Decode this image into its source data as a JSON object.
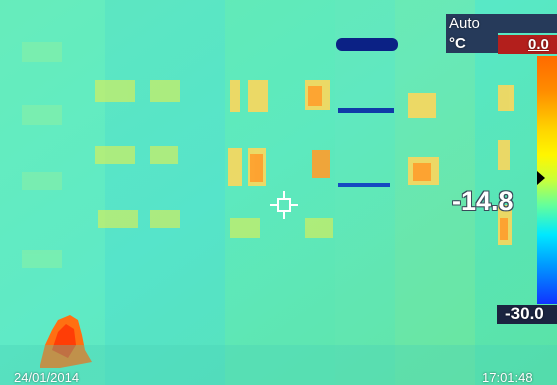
{
  "hud": {
    "mode": "Auto",
    "unit": "°C",
    "max_value": "0.0",
    "center_value": "-14.8",
    "min_value": "-30.0",
    "date": "24/01/2014",
    "time": "17:01:48"
  },
  "colors": {
    "hud_panel": "#263a5a",
    "max_box": "#b31f1c",
    "min_box": "#1b2440",
    "background_thermal": "#59e6b6"
  },
  "icons": {
    "crosshair": "crosshair-icon",
    "marker": "colorbar-marker-icon"
  }
}
